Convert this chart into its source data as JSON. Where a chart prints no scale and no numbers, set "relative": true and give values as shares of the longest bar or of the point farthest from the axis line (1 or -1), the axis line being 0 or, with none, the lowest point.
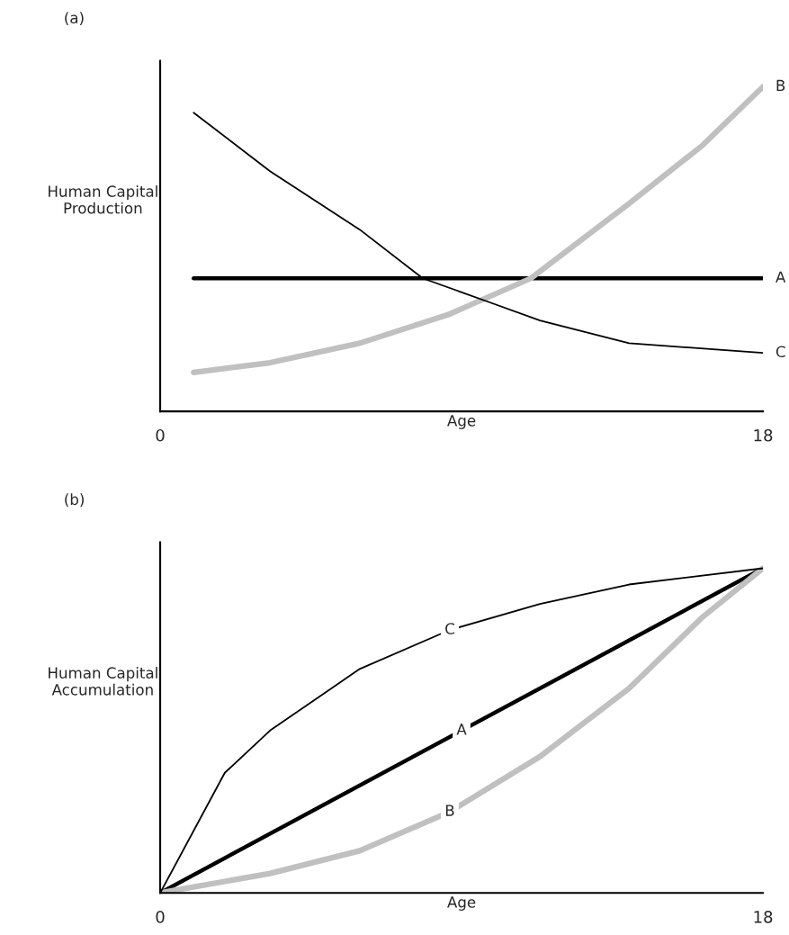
{
  "chart_data": [
    {
      "type": "line",
      "title": "(a)",
      "xlabel": "Age",
      "ylabel": "Human Capital\nProduction",
      "relative": true,
      "xlim": [
        0,
        18
      ],
      "xticks": [
        0,
        18
      ],
      "tick_labels": "x",
      "grid": false,
      "legend": false,
      "marker": "none",
      "series": [
        {
          "color": "#000000",
          "x": [
            1,
            18
          ],
          "values": [
            0.41,
            0.41
          ]
        },
        {
          "color": "#c0c0c0",
          "x": [
            1,
            3.28,
            5.96,
            8.65,
            11.07,
            14.0,
            16.2,
            18
          ],
          "values": [
            0.12,
            0.15,
            0.21,
            0.3,
            0.41,
            0.64,
            0.82,
            1
          ]
        },
        {
          "color": "#000000",
          "x": [
            1,
            3.28,
            5.96,
            7.84,
            9.73,
            11.34,
            14.0,
            16.7,
            18
          ],
          "values": [
            0.92,
            0.74,
            0.56,
            0.41,
            0.34,
            0.28,
            0.21,
            0.19,
            0.18
          ]
        }
      ],
      "annotations": [
        {
          "text": "A",
          "x": 18,
          "y": 0.41
        },
        {
          "text": "B",
          "x": 18,
          "y": 1
        },
        {
          "text": "C",
          "x": 18,
          "y": 0.18
        }
      ]
    },
    {
      "type": "line",
      "title": "(b)",
      "xlabel": "Age",
      "ylabel": "Human Capital\nAccumulation",
      "relative": true,
      "xlim": [
        0,
        18
      ],
      "xticks": [
        0,
        18
      ],
      "tick_labels": "x",
      "grid": false,
      "legend": false,
      "marker": "none",
      "series": [
        {
          "color": "#000000",
          "x": [
            0,
            18
          ],
          "values": [
            0,
            1
          ]
        },
        {
          "color": "#c0c0c0",
          "x": [
            0,
            3.28,
            5.96,
            8.65,
            11.34,
            14.0,
            16.2,
            18
          ],
          "values": [
            0,
            0.06,
            0.13,
            0.25,
            0.42,
            0.63,
            0.85,
            1
          ]
        },
        {
          "color": "#000000",
          "x": [
            0,
            1.93,
            3.28,
            5.96,
            8.65,
            11.34,
            14.0,
            18
          ],
          "values": [
            0,
            0.37,
            0.5,
            0.69,
            0.81,
            0.89,
            0.95,
            1
          ]
        }
      ],
      "annotations": [
        {
          "text": "A",
          "x": 9,
          "y": 0.5
        },
        {
          "text": "B",
          "x": 8.65,
          "y": 0.25
        },
        {
          "text": "C",
          "x": 8.65,
          "y": 0.81
        }
      ]
    }
  ]
}
